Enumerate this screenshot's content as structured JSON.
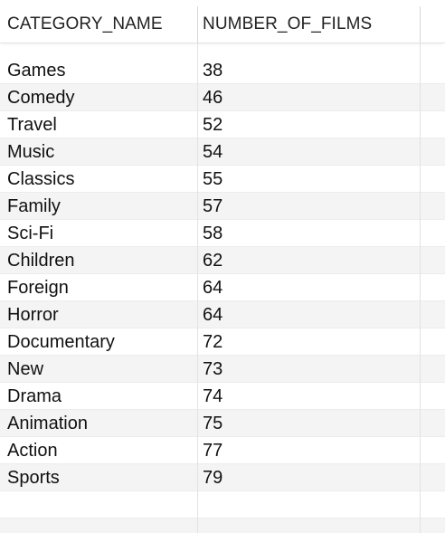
{
  "columns": [
    {
      "label": "CATEGORY_NAME"
    },
    {
      "label": "NUMBER_OF_FILMS"
    }
  ],
  "rows": [
    {
      "category": "Games",
      "count": "38"
    },
    {
      "category": "Comedy",
      "count": "46"
    },
    {
      "category": "Travel",
      "count": "52"
    },
    {
      "category": "Music",
      "count": "54"
    },
    {
      "category": "Classics",
      "count": "55"
    },
    {
      "category": "Family",
      "count": "57"
    },
    {
      "category": "Sci-Fi",
      "count": "58"
    },
    {
      "category": "Children",
      "count": "62"
    },
    {
      "category": "Foreign",
      "count": "64"
    },
    {
      "category": "Horror",
      "count": "64"
    },
    {
      "category": "Documentary",
      "count": "72"
    },
    {
      "category": "New",
      "count": "73"
    },
    {
      "category": "Drama",
      "count": "74"
    },
    {
      "category": "Animation",
      "count": "75"
    },
    {
      "category": "Action",
      "count": "77"
    },
    {
      "category": "Sports",
      "count": "79"
    }
  ]
}
